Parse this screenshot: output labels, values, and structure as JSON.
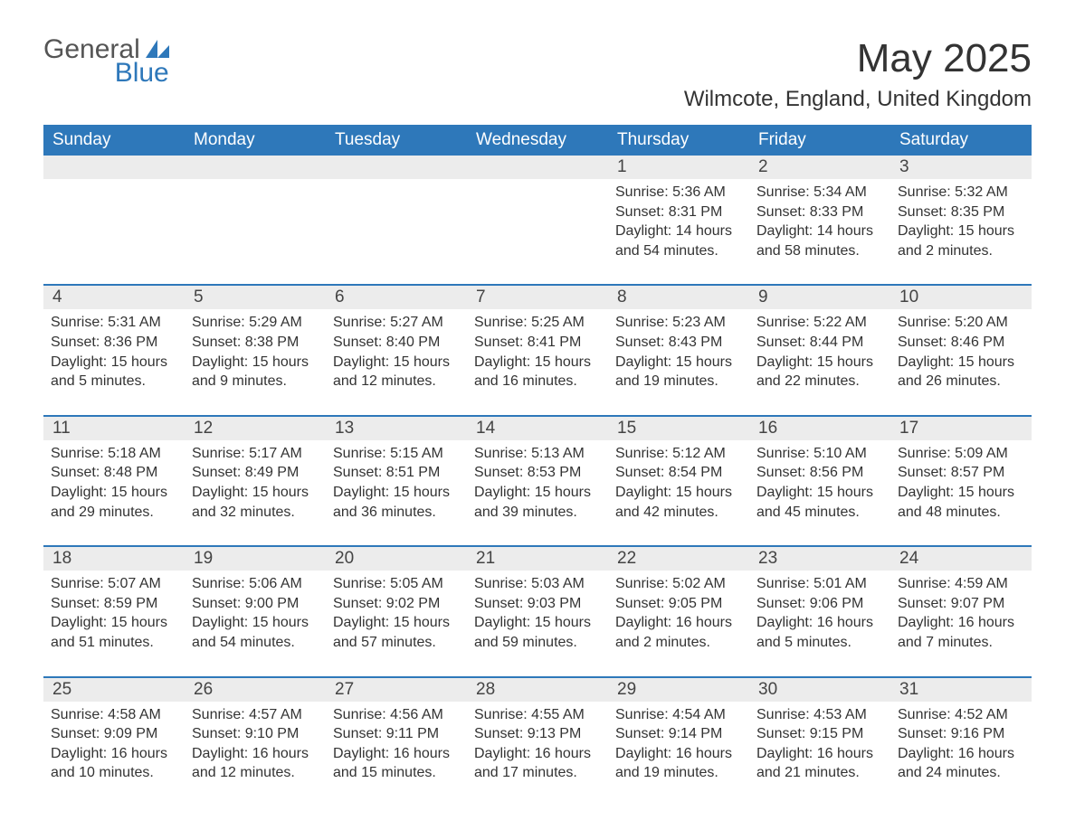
{
  "brand": {
    "top": "General",
    "bottom": "Blue",
    "logo_color": "#2e78ba"
  },
  "title": "May 2025",
  "subtitle": "Wilmcote, England, United Kingdom",
  "header_bg": "#2e78ba",
  "header_fg": "#ffffff",
  "daynum_bg": "#ececec",
  "row_border": "#2e78ba",
  "text_color": "#333333",
  "columns": [
    "Sunday",
    "Monday",
    "Tuesday",
    "Wednesday",
    "Thursday",
    "Friday",
    "Saturday"
  ],
  "weeks": [
    [
      null,
      null,
      null,
      null,
      {
        "n": "1",
        "sunrise": "5:36 AM",
        "sunset": "8:31 PM",
        "dl": "14 hours and 54 minutes."
      },
      {
        "n": "2",
        "sunrise": "5:34 AM",
        "sunset": "8:33 PM",
        "dl": "14 hours and 58 minutes."
      },
      {
        "n": "3",
        "sunrise": "5:32 AM",
        "sunset": "8:35 PM",
        "dl": "15 hours and 2 minutes."
      }
    ],
    [
      {
        "n": "4",
        "sunrise": "5:31 AM",
        "sunset": "8:36 PM",
        "dl": "15 hours and 5 minutes."
      },
      {
        "n": "5",
        "sunrise": "5:29 AM",
        "sunset": "8:38 PM",
        "dl": "15 hours and 9 minutes."
      },
      {
        "n": "6",
        "sunrise": "5:27 AM",
        "sunset": "8:40 PM",
        "dl": "15 hours and 12 minutes."
      },
      {
        "n": "7",
        "sunrise": "5:25 AM",
        "sunset": "8:41 PM",
        "dl": "15 hours and 16 minutes."
      },
      {
        "n": "8",
        "sunrise": "5:23 AM",
        "sunset": "8:43 PM",
        "dl": "15 hours and 19 minutes."
      },
      {
        "n": "9",
        "sunrise": "5:22 AM",
        "sunset": "8:44 PM",
        "dl": "15 hours and 22 minutes."
      },
      {
        "n": "10",
        "sunrise": "5:20 AM",
        "sunset": "8:46 PM",
        "dl": "15 hours and 26 minutes."
      }
    ],
    [
      {
        "n": "11",
        "sunrise": "5:18 AM",
        "sunset": "8:48 PM",
        "dl": "15 hours and 29 minutes."
      },
      {
        "n": "12",
        "sunrise": "5:17 AM",
        "sunset": "8:49 PM",
        "dl": "15 hours and 32 minutes."
      },
      {
        "n": "13",
        "sunrise": "5:15 AM",
        "sunset": "8:51 PM",
        "dl": "15 hours and 36 minutes."
      },
      {
        "n": "14",
        "sunrise": "5:13 AM",
        "sunset": "8:53 PM",
        "dl": "15 hours and 39 minutes."
      },
      {
        "n": "15",
        "sunrise": "5:12 AM",
        "sunset": "8:54 PM",
        "dl": "15 hours and 42 minutes."
      },
      {
        "n": "16",
        "sunrise": "5:10 AM",
        "sunset": "8:56 PM",
        "dl": "15 hours and 45 minutes."
      },
      {
        "n": "17",
        "sunrise": "5:09 AM",
        "sunset": "8:57 PM",
        "dl": "15 hours and 48 minutes."
      }
    ],
    [
      {
        "n": "18",
        "sunrise": "5:07 AM",
        "sunset": "8:59 PM",
        "dl": "15 hours and 51 minutes."
      },
      {
        "n": "19",
        "sunrise": "5:06 AM",
        "sunset": "9:00 PM",
        "dl": "15 hours and 54 minutes."
      },
      {
        "n": "20",
        "sunrise": "5:05 AM",
        "sunset": "9:02 PM",
        "dl": "15 hours and 57 minutes."
      },
      {
        "n": "21",
        "sunrise": "5:03 AM",
        "sunset": "9:03 PM",
        "dl": "15 hours and 59 minutes."
      },
      {
        "n": "22",
        "sunrise": "5:02 AM",
        "sunset": "9:05 PM",
        "dl": "16 hours and 2 minutes."
      },
      {
        "n": "23",
        "sunrise": "5:01 AM",
        "sunset": "9:06 PM",
        "dl": "16 hours and 5 minutes."
      },
      {
        "n": "24",
        "sunrise": "4:59 AM",
        "sunset": "9:07 PM",
        "dl": "16 hours and 7 minutes."
      }
    ],
    [
      {
        "n": "25",
        "sunrise": "4:58 AM",
        "sunset": "9:09 PM",
        "dl": "16 hours and 10 minutes."
      },
      {
        "n": "26",
        "sunrise": "4:57 AM",
        "sunset": "9:10 PM",
        "dl": "16 hours and 12 minutes."
      },
      {
        "n": "27",
        "sunrise": "4:56 AM",
        "sunset": "9:11 PM",
        "dl": "16 hours and 15 minutes."
      },
      {
        "n": "28",
        "sunrise": "4:55 AM",
        "sunset": "9:13 PM",
        "dl": "16 hours and 17 minutes."
      },
      {
        "n": "29",
        "sunrise": "4:54 AM",
        "sunset": "9:14 PM",
        "dl": "16 hours and 19 minutes."
      },
      {
        "n": "30",
        "sunrise": "4:53 AM",
        "sunset": "9:15 PM",
        "dl": "16 hours and 21 minutes."
      },
      {
        "n": "31",
        "sunrise": "4:52 AM",
        "sunset": "9:16 PM",
        "dl": "16 hours and 24 minutes."
      }
    ]
  ],
  "labels": {
    "sunrise": "Sunrise:",
    "sunset": "Sunset:",
    "daylight": "Daylight:"
  }
}
